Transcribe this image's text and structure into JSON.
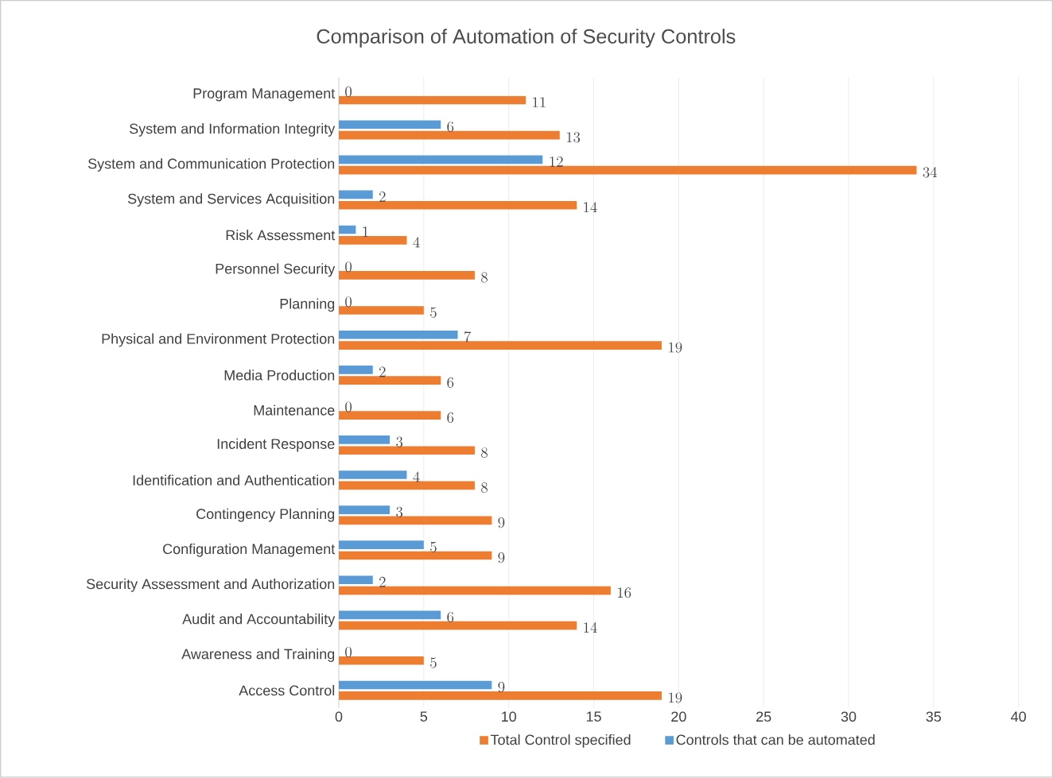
{
  "chart_data": {
    "type": "bar",
    "orientation": "horizontal",
    "title": "Comparison of Automation of Security Controls",
    "categories": [
      "Program Management",
      "System and Information Integrity",
      "System and Communication Protection",
      "System and Services Acquisition",
      "Risk Assessment",
      "Personnel Security",
      "Planning",
      "Physical and Environment Protection",
      "Media Production",
      "Maintenance",
      "Incident Response",
      "Identification and Authentication",
      "Contingency Planning",
      "Configuration Management",
      "Security Assessment and Authorization",
      "Audit and Accountability",
      "Awareness and Training",
      "Access Control"
    ],
    "series": [
      {
        "name": "Total Control specified",
        "color": "#ed7d31",
        "values": [
          11,
          13,
          34,
          14,
          4,
          8,
          5,
          19,
          6,
          6,
          8,
          8,
          9,
          9,
          16,
          14,
          5,
          19
        ]
      },
      {
        "name": "Controls that can be automated",
        "color": "#5b9bd5",
        "values": [
          0,
          6,
          12,
          2,
          1,
          0,
          0,
          7,
          2,
          0,
          3,
          4,
          3,
          5,
          2,
          6,
          0,
          9
        ]
      }
    ],
    "xlim": [
      0,
      40
    ],
    "xticks": [
      0,
      5,
      10,
      15,
      20,
      25,
      30,
      35,
      40
    ],
    "grid": "x",
    "legend": "bottom",
    "data_labels": true
  }
}
